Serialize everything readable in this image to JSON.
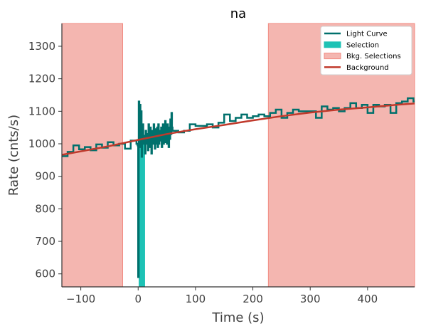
{
  "chart_data": {
    "type": "line",
    "title": "na",
    "xlabel": "Time (s)",
    "ylabel": "Rate (cnts/s)",
    "xlim": [
      -133,
      482
    ],
    "ylim": [
      560,
      1370
    ],
    "xticks": [
      -100,
      0,
      100,
      200,
      300,
      400
    ],
    "xtick_labels": [
      "−100",
      "0",
      "100",
      "200",
      "300",
      "400"
    ],
    "yticks": [
      600,
      700,
      800,
      900,
      1000,
      1100,
      1200,
      1300
    ],
    "ytick_labels": [
      "600",
      "700",
      "800",
      "900",
      "1000",
      "1100",
      "1200",
      "1300"
    ],
    "grid": false,
    "legend_position": "top-right",
    "legend": [
      {
        "label": "Light Curve",
        "kind": "line",
        "color": "#00706c"
      },
      {
        "label": "Selection",
        "kind": "patch",
        "color": "#1dc2b5"
      },
      {
        "label": "Bkg. Selections",
        "kind": "patch",
        "color": "#f4b6b0"
      },
      {
        "label": "Background",
        "kind": "line",
        "color": "#c0392b"
      }
    ],
    "selection": {
      "from": 1,
      "to": 12,
      "color": "#1dc2b5"
    },
    "bkg_selections": [
      {
        "from": -133,
        "to": -27
      },
      {
        "from": 227,
        "to": 482
      }
    ],
    "background_model": {
      "x": [
        -133,
        -50,
        0,
        50,
        100,
        150,
        200,
        250,
        300,
        350,
        400,
        450,
        482
      ],
      "y": [
        966,
        993,
        1012,
        1030,
        1045,
        1058,
        1072,
        1085,
        1096,
        1105,
        1112,
        1120,
        1124
      ],
      "color": "#c0392b"
    },
    "light_curve": {
      "color": "#00706c",
      "x": [
        -133,
        -123,
        -113,
        -103,
        -93,
        -83,
        -73,
        -63,
        -53,
        -43,
        -33,
        -23,
        -13,
        -3,
        -2,
        -1,
        0,
        1,
        2,
        3,
        4,
        5,
        6,
        7,
        8,
        9,
        10,
        11,
        12,
        13,
        14,
        15,
        16,
        17,
        18,
        19,
        20,
        21,
        22,
        23,
        24,
        25,
        26,
        27,
        28,
        29,
        30,
        31,
        32,
        33,
        34,
        35,
        36,
        37,
        38,
        39,
        40,
        41,
        42,
        43,
        44,
        45,
        46,
        47,
        48,
        49,
        50,
        51,
        52,
        53,
        54,
        55,
        56,
        57,
        58,
        59,
        60,
        70,
        80,
        90,
        100,
        110,
        120,
        130,
        140,
        150,
        160,
        170,
        180,
        190,
        200,
        210,
        220,
        230,
        240,
        250,
        260,
        270,
        280,
        290,
        300,
        310,
        320,
        330,
        340,
        350,
        360,
        370,
        380,
        390,
        400,
        410,
        420,
        430,
        440,
        450,
        460,
        470,
        480
      ],
      "y": [
        962,
        975,
        995,
        983,
        990,
        980,
        998,
        988,
        1005,
        995,
        1000,
        985,
        1010,
        1000,
        1000,
        995,
        590,
        1130,
        1010,
        1120,
        990,
        1100,
        960,
        1040,
        1060,
        1000,
        1010,
        1025,
        970,
        1040,
        1020,
        1000,
        1030,
        980,
        1060,
        1010,
        990,
        1050,
        1005,
        970,
        1040,
        1030,
        1000,
        1060,
        1015,
        985,
        1045,
        1000,
        1030,
        1050,
        990,
        1060,
        1000,
        1020,
        1040,
        1010,
        1050,
        990,
        1020,
        1060,
        1000,
        1035,
        1005,
        1070,
        1020,
        1040,
        1000,
        1060,
        1025,
        990,
        1050,
        1015,
        1075,
        1030,
        1095,
        1050,
        1040,
        1035,
        1040,
        1060,
        1055,
        1055,
        1060,
        1050,
        1065,
        1090,
        1070,
        1080,
        1090,
        1080,
        1085,
        1090,
        1085,
        1095,
        1105,
        1080,
        1095,
        1105,
        1100,
        1100,
        1100,
        1080,
        1115,
        1105,
        1110,
        1100,
        1110,
        1125,
        1110,
        1120,
        1095,
        1120,
        1115,
        1120,
        1095,
        1125,
        1130,
        1140,
        1130
      ]
    }
  }
}
